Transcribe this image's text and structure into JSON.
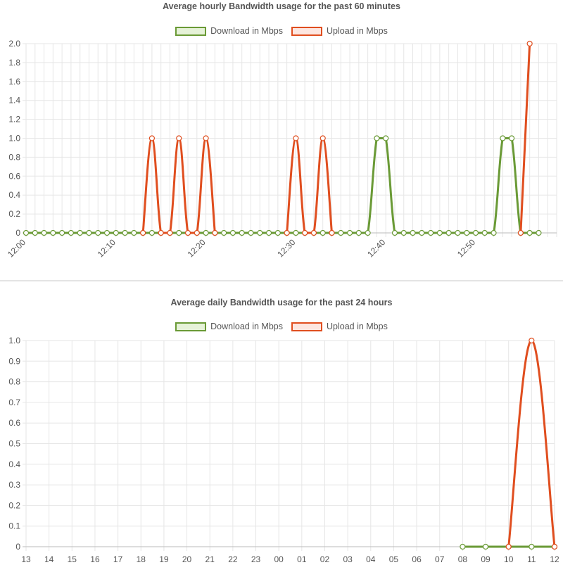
{
  "chart_data": [
    {
      "type": "line",
      "title": "Average hourly Bandwidth usage for the past 60 minutes",
      "xlabel": "",
      "ylabel": "",
      "ylim": [
        0,
        2.0
      ],
      "yticks": [
        "0",
        "0.2",
        "0.4",
        "0.6",
        "0.8",
        "1.0",
        "1.2",
        "1.4",
        "1.6",
        "1.8",
        "2.0"
      ],
      "xticks": [
        "12:00",
        "12:10",
        "12:20",
        "12:30",
        "12:40",
        "12:50"
      ],
      "x_minutes": [
        0,
        1,
        2,
        3,
        4,
        5,
        6,
        7,
        8,
        9,
        10,
        11,
        12,
        13,
        14,
        15,
        16,
        17,
        18,
        19,
        20,
        21,
        22,
        23,
        24,
        25,
        26,
        27,
        28,
        29,
        30,
        31,
        32,
        33,
        34,
        35,
        36,
        37,
        38,
        39,
        40,
        41,
        42,
        43,
        44,
        45,
        46,
        47,
        48,
        49,
        50,
        51,
        52,
        53,
        54,
        55,
        56,
        57
      ],
      "grid": true,
      "legend_position": "top",
      "series": [
        {
          "name": "Download in Mbps",
          "color": "#6a9a36",
          "fill": "#e6f2d8",
          "values": [
            0,
            0,
            0,
            0,
            0,
            0,
            0,
            0,
            0,
            0,
            0,
            0,
            0,
            0,
            0,
            0,
            0,
            0,
            0,
            0,
            0,
            0,
            0,
            0,
            0,
            0,
            0,
            0,
            0,
            0,
            0,
            0,
            0,
            0,
            0,
            0,
            0,
            0,
            0,
            1,
            1,
            0,
            0,
            0,
            0,
            0,
            0,
            0,
            0,
            0,
            0,
            0,
            0,
            1,
            1,
            0,
            0,
            0
          ]
        },
        {
          "name": "Upload in Mbps",
          "color": "#e04e1f",
          "fill": "#fde6e0",
          "values": [
            null,
            null,
            null,
            null,
            null,
            null,
            null,
            null,
            null,
            null,
            null,
            null,
            null,
            0,
            1,
            0,
            0,
            1,
            0,
            0,
            1,
            0,
            null,
            null,
            null,
            null,
            null,
            null,
            null,
            0,
            1,
            0,
            0,
            1,
            0,
            null,
            null,
            null,
            null,
            null,
            null,
            null,
            null,
            null,
            null,
            null,
            null,
            null,
            null,
            null,
            null,
            null,
            null,
            null,
            null,
            0,
            2,
            null
          ]
        }
      ]
    },
    {
      "type": "line",
      "title": "Average daily Bandwidth usage for the past 24 hours",
      "xlabel": "",
      "ylabel": "",
      "ylim": [
        0,
        1.0
      ],
      "yticks": [
        "0",
        "0.1",
        "0.2",
        "0.3",
        "0.4",
        "0.5",
        "0.6",
        "0.7",
        "0.8",
        "0.9",
        "1.0"
      ],
      "categories": [
        "13",
        "14",
        "15",
        "16",
        "17",
        "18",
        "19",
        "20",
        "21",
        "22",
        "23",
        "00",
        "01",
        "02",
        "03",
        "04",
        "05",
        "06",
        "07",
        "08",
        "09",
        "10",
        "11",
        "12"
      ],
      "grid": true,
      "legend_position": "top",
      "series": [
        {
          "name": "Download in Mbps",
          "color": "#6a9a36",
          "fill": "#e6f2d8",
          "values": [
            null,
            null,
            null,
            null,
            null,
            null,
            null,
            null,
            null,
            null,
            null,
            null,
            null,
            null,
            null,
            null,
            null,
            null,
            null,
            0,
            0,
            0,
            0,
            0
          ]
        },
        {
          "name": "Upload in Mbps",
          "color": "#e04e1f",
          "fill": "#fde6e0",
          "values": [
            null,
            null,
            null,
            null,
            null,
            null,
            null,
            null,
            null,
            null,
            null,
            null,
            null,
            null,
            null,
            null,
            null,
            null,
            null,
            null,
            null,
            0,
            1,
            0
          ]
        }
      ]
    }
  ]
}
